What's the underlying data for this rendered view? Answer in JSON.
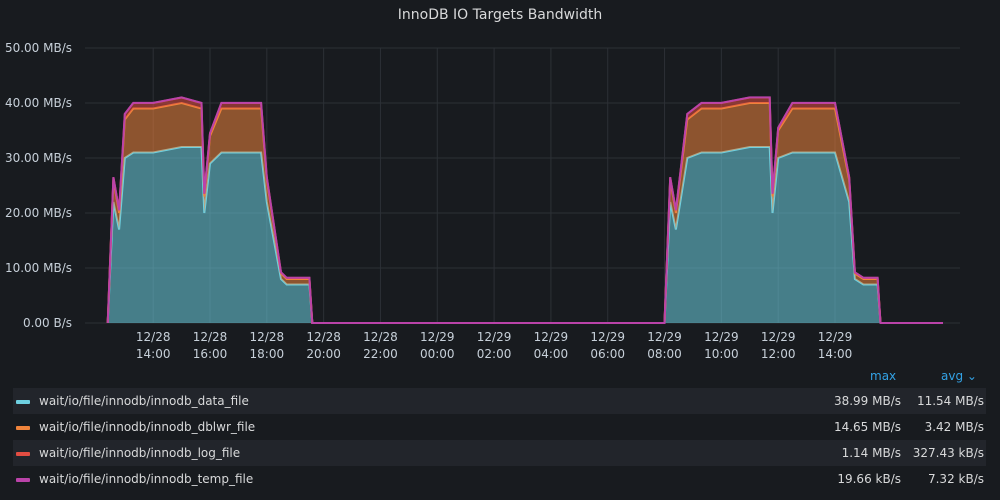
{
  "panel": {
    "title": "InnoDB IO Targets Bandwidth"
  },
  "legend": {
    "headers": {
      "max": "max",
      "avg": "avg ⌄"
    },
    "rows": [
      {
        "name": "wait/io/file/innodb/innodb_data_file",
        "max": "38.99 MB/s",
        "avg": "11.54 MB/s",
        "color": "#6ed0e0"
      },
      {
        "name": "wait/io/file/innodb/innodb_dblwr_file",
        "max": "14.65 MB/s",
        "avg": "3.42 MB/s",
        "color": "#ef843c"
      },
      {
        "name": "wait/io/file/innodb/innodb_log_file",
        "max": "1.14 MB/s",
        "avg": "327.43 kB/s",
        "color": "#e24d42"
      },
      {
        "name": "wait/io/file/innodb/innodb_temp_file",
        "max": "19.66 kB/s",
        "avg": "7.32 kB/s",
        "color": "#ba43a9"
      }
    ]
  },
  "chart_data": {
    "type": "area",
    "stacked": true,
    "title": "InnoDB IO Targets Bandwidth",
    "y_unit": "MB/s",
    "ylim": [
      0,
      50
    ],
    "y_ticks": [
      "0.00 B/s",
      "10.00 MB/s",
      "20.00 MB/s",
      "30.00 MB/s",
      "40.00 MB/s",
      "50.00 MB/s"
    ],
    "x_ticks": [
      [
        "12/28",
        "14:00"
      ],
      [
        "12/28",
        "16:00"
      ],
      [
        "12/28",
        "18:00"
      ],
      [
        "12/28",
        "20:00"
      ],
      [
        "12/28",
        "22:00"
      ],
      [
        "12/29",
        "00:00"
      ],
      [
        "12/29",
        "02:00"
      ],
      [
        "12/29",
        "04:00"
      ],
      [
        "12/29",
        "06:00"
      ],
      [
        "12/29",
        "08:00"
      ],
      [
        "12/29",
        "10:00"
      ],
      [
        "12/29",
        "12:00"
      ],
      [
        "12/29",
        "14:00"
      ]
    ],
    "x_hours": [
      12.4,
      12.6,
      12.8,
      13.0,
      13.3,
      13.6,
      14.0,
      15.0,
      15.7,
      15.8,
      16.0,
      16.4,
      17.0,
      17.5,
      17.8,
      18.0,
      18.5,
      18.7,
      19.0,
      19.5,
      19.6,
      20.0,
      32.0,
      32.2,
      32.4,
      32.8,
      33.3,
      34.0,
      35.0,
      35.7,
      35.8,
      36.0,
      36.5,
      37.0,
      37.5,
      38.0,
      38.5,
      38.7,
      39.0,
      39.5,
      39.6,
      40.0,
      41.8
    ],
    "grid": true,
    "legend_placement": "bottom",
    "series": [
      {
        "name": "wait/io/file/innodb/innodb_data_file",
        "values": [
          0,
          22,
          17,
          30,
          31,
          31,
          31,
          32,
          32,
          20,
          29,
          31,
          31,
          31,
          31,
          22,
          8,
          7,
          7,
          7,
          0,
          0,
          0,
          22,
          17,
          30,
          31,
          31,
          32,
          32,
          20,
          30,
          31,
          31,
          31,
          31,
          22,
          8,
          7,
          7,
          0,
          0,
          0
        ]
      },
      {
        "name": "wait/io/file/innodb/innodb_dblwr_file",
        "values": [
          0,
          4,
          3,
          7,
          8,
          8,
          8,
          8,
          7,
          3,
          5,
          8,
          8,
          8,
          8,
          4,
          1,
          1,
          1,
          1,
          0,
          0,
          0,
          4,
          3,
          7,
          8,
          8,
          8,
          8,
          3,
          5,
          8,
          8,
          8,
          8,
          4,
          1,
          1,
          1,
          0,
          0,
          0
        ]
      },
      {
        "name": "wait/io/file/innodb/innodb_log_file",
        "values": [
          0,
          0.5,
          0.5,
          1,
          1,
          1,
          1,
          1,
          1,
          0.5,
          0.5,
          1,
          1,
          1,
          1,
          0.5,
          0.2,
          0.2,
          0.2,
          0.2,
          0,
          0,
          0,
          0.5,
          0.5,
          1,
          1,
          1,
          1,
          1,
          0.5,
          0.5,
          1,
          1,
          1,
          1,
          0.5,
          0.2,
          0.2,
          0.2,
          0,
          0,
          0
        ]
      },
      {
        "name": "wait/io/file/innodb/innodb_temp_file",
        "values": [
          0,
          0.01,
          0.01,
          0.01,
          0.01,
          0.01,
          0.01,
          0.01,
          0.01,
          0.01,
          0.01,
          0.01,
          0.01,
          0.01,
          0.01,
          0.01,
          0.01,
          0.01,
          0.01,
          0.01,
          0,
          0,
          0,
          0.01,
          0.01,
          0.01,
          0.01,
          0.01,
          0.01,
          0.01,
          0.01,
          0.01,
          0.01,
          0.01,
          0.01,
          0.01,
          0.01,
          0.01,
          0.01,
          0.01,
          0,
          0,
          0
        ]
      }
    ]
  }
}
